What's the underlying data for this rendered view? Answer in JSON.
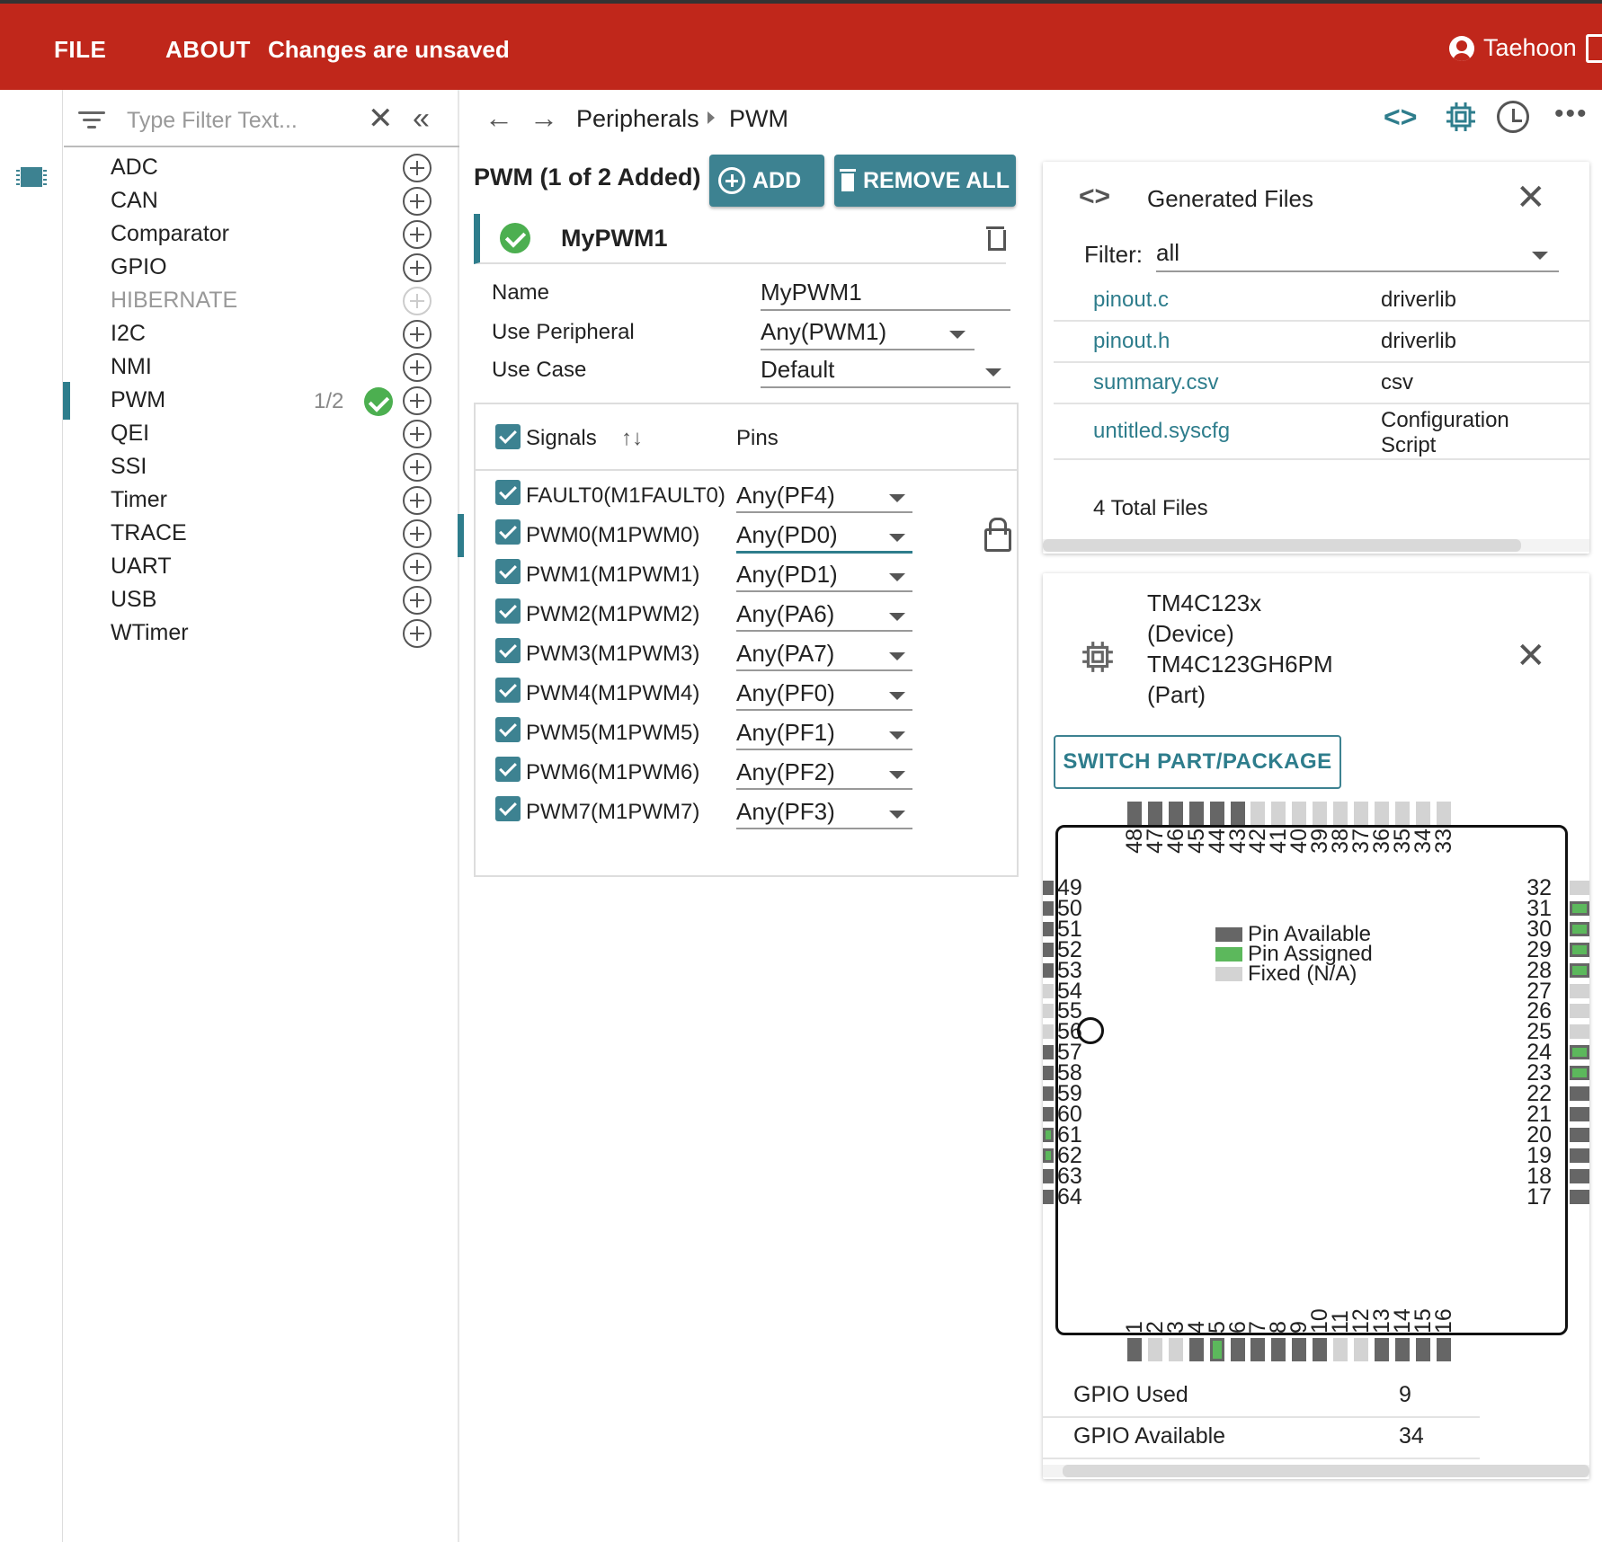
{
  "header": {
    "menu": [
      "FILE",
      "ABOUT"
    ],
    "status": "Changes are unsaved",
    "user": "Taehoon"
  },
  "filter": {
    "placeholder": "Type Filter Text..."
  },
  "peripherals": [
    {
      "label": "ADC",
      "enabled": true
    },
    {
      "label": "CAN",
      "enabled": true
    },
    {
      "label": "Comparator",
      "enabled": true
    },
    {
      "label": "GPIO",
      "enabled": true
    },
    {
      "label": "HIBERNATE",
      "enabled": false
    },
    {
      "label": "I2C",
      "enabled": true
    },
    {
      "label": "NMI",
      "enabled": true
    },
    {
      "label": "PWM",
      "enabled": true,
      "selected": true,
      "count": "1/2"
    },
    {
      "label": "QEI",
      "enabled": true
    },
    {
      "label": "SSI",
      "enabled": true
    },
    {
      "label": "Timer",
      "enabled": true
    },
    {
      "label": "TRACE",
      "enabled": true
    },
    {
      "label": "UART",
      "enabled": true
    },
    {
      "label": "USB",
      "enabled": true
    },
    {
      "label": "WTimer",
      "enabled": true
    }
  ],
  "breadcrumb": [
    "Peripherals",
    "PWM"
  ],
  "config": {
    "title": "PWM (1 of 2 Added)",
    "add_label": "ADD",
    "remove_all_label": "REMOVE ALL",
    "instance_name": "MyPWM1",
    "fields": [
      {
        "label": "Name",
        "value": "MyPWM1",
        "dropdown": false
      },
      {
        "label": "Use Peripheral",
        "value": "Any(PWM1)",
        "dropdown": true
      },
      {
        "label": "Use Case",
        "value": "Default",
        "dropdown": true
      }
    ],
    "signals_header": "Signals",
    "pins_header": "Pins",
    "signals": [
      {
        "name": "FAULT0(M1FAULT0)",
        "pin": "Any(PF4)"
      },
      {
        "name": "PWM0(M1PWM0)",
        "pin": "Any(PD0)",
        "active": true
      },
      {
        "name": "PWM1(M1PWM1)",
        "pin": "Any(PD1)"
      },
      {
        "name": "PWM2(M1PWM2)",
        "pin": "Any(PA6)"
      },
      {
        "name": "PWM3(M1PWM3)",
        "pin": "Any(PA7)"
      },
      {
        "name": "PWM4(M1PWM4)",
        "pin": "Any(PF0)"
      },
      {
        "name": "PWM5(M1PWM5)",
        "pin": "Any(PF1)"
      },
      {
        "name": "PWM6(M1PWM6)",
        "pin": "Any(PF2)"
      },
      {
        "name": "PWM7(M1PWM7)",
        "pin": "Any(PF3)"
      }
    ]
  },
  "generated_files": {
    "title": "Generated Files",
    "filter_label": "Filter:",
    "filter_value": "all",
    "files": [
      {
        "name": "pinout.c",
        "type": "driverlib"
      },
      {
        "name": "pinout.h",
        "type": "driverlib"
      },
      {
        "name": "summary.csv",
        "type": "csv"
      },
      {
        "name": "untitled.syscfg",
        "type": "Configuration Script"
      }
    ],
    "total": "4 Total Files"
  },
  "device": {
    "lines": [
      "TM4C123x",
      "(Device)",
      "TM4C123GH6PM",
      "(Part)"
    ],
    "switch_label": "SWITCH PART/PACKAGE",
    "legend": [
      {
        "label": "Pin Available",
        "color": "#666666"
      },
      {
        "label": "Pin Assigned",
        "color": "#5cb85c"
      },
      {
        "label": "Fixed (N/A)",
        "color": "#d3d3d3"
      }
    ],
    "pins_top": [
      "48",
      "47",
      "46",
      "45",
      "44",
      "43",
      "42",
      "41",
      "40",
      "39",
      "38",
      "37",
      "36",
      "35",
      "34",
      "33"
    ],
    "pins_top_state": [
      "a",
      "a",
      "a",
      "a",
      "a",
      "a",
      "f",
      "f",
      "f",
      "f",
      "f",
      "f",
      "f",
      "f",
      "f",
      "f"
    ],
    "pins_bottom": [
      "1",
      "2",
      "3",
      "4",
      "5",
      "6",
      "7",
      "8",
      "9",
      "10",
      "11",
      "12",
      "13",
      "14",
      "15",
      "16"
    ],
    "pins_bottom_state": [
      "a",
      "f",
      "f",
      "a",
      "s",
      "a",
      "a",
      "a",
      "a",
      "a",
      "f",
      "f",
      "a",
      "a",
      "a",
      "a"
    ],
    "pins_left": [
      "49",
      "50",
      "51",
      "52",
      "53",
      "54",
      "55",
      "56",
      "57",
      "58",
      "59",
      "60",
      "61",
      "62",
      "63",
      "64"
    ],
    "pins_left_state": [
      "a",
      "a",
      "a",
      "a",
      "a",
      "f",
      "f",
      "f",
      "a",
      "a",
      "a",
      "a",
      "s",
      "s",
      "a",
      "a"
    ],
    "pins_right": [
      "32",
      "31",
      "30",
      "29",
      "28",
      "27",
      "26",
      "25",
      "24",
      "23",
      "22",
      "21",
      "20",
      "19",
      "18",
      "17"
    ],
    "pins_right_state": [
      "f",
      "s",
      "s",
      "s",
      "s",
      "f",
      "f",
      "f",
      "s",
      "s",
      "a",
      "a",
      "a",
      "a",
      "a",
      "a"
    ],
    "stats": [
      {
        "label": "GPIO Used",
        "value": "9"
      },
      {
        "label": "GPIO Available",
        "value": "34"
      }
    ]
  }
}
